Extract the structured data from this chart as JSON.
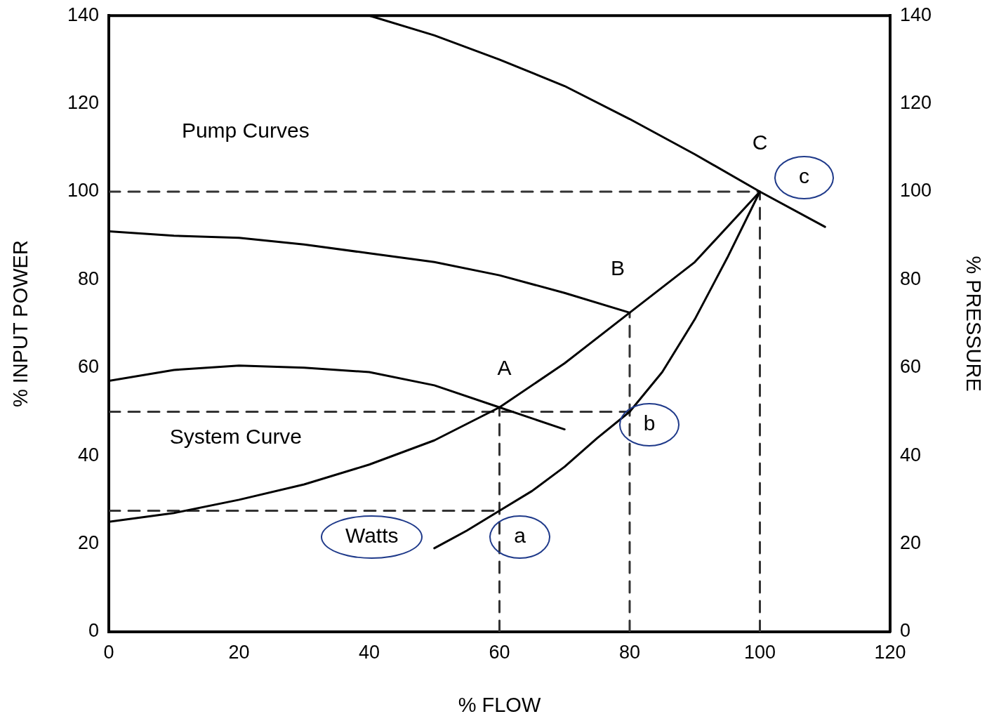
{
  "chart_data": {
    "type": "line",
    "xlabel": "% FLOW",
    "ylabel": "% INPUT POWER",
    "y2label": "% PRESSURE",
    "xlim": [
      0,
      120
    ],
    "xticks": [
      0,
      20,
      40,
      60,
      80,
      100,
      120
    ],
    "ylim": [
      0,
      140
    ],
    "yticks": [
      0,
      20,
      40,
      60,
      80,
      100,
      120,
      140
    ],
    "y2lim": [
      0,
      140
    ],
    "y2ticks": [
      0,
      20,
      40,
      60,
      80,
      100,
      120,
      140
    ],
    "grid": false,
    "legend": false,
    "marker": "none",
    "line_style": "solid",
    "series": [
      {
        "color": "#000000",
        "x": [
          40,
          50,
          60,
          70,
          80,
          90,
          100,
          110
        ],
        "values": [
          140,
          135.5,
          130,
          124,
          116.5,
          108.5,
          100,
          92
        ]
      },
      {
        "color": "#000000",
        "x": [
          0,
          10,
          20,
          30,
          40,
          50,
          60,
          70,
          80
        ],
        "values": [
          91,
          90,
          89.5,
          88,
          86,
          84,
          81,
          77,
          72.5
        ]
      },
      {
        "color": "#000000",
        "x": [
          0,
          10,
          20,
          30,
          40,
          50,
          60,
          70
        ],
        "values": [
          57,
          59.5,
          60.5,
          60,
          59,
          56,
          51,
          46
        ]
      },
      {
        "color": "#000000",
        "x": [
          0,
          10,
          20,
          30,
          40,
          50,
          60,
          70,
          80,
          90,
          100
        ],
        "values": [
          25,
          27,
          30,
          33.5,
          38,
          43.5,
          51,
          61,
          72.5,
          84,
          100
        ]
      },
      {
        "color": "#000000",
        "x": [
          50,
          55,
          60,
          65,
          70,
          75,
          80,
          85,
          90,
          95,
          100
        ],
        "values": [
          19,
          23,
          27.5,
          32,
          37.5,
          44,
          50,
          59,
          71,
          85,
          100
        ]
      },
      {
        "color": "#333333",
        "line_style": "dashed",
        "x": [
          0,
          100
        ],
        "values": [
          100,
          100
        ]
      },
      {
        "color": "#333333",
        "line_style": "dashed",
        "x": [
          0,
          80
        ],
        "values": [
          50,
          50
        ]
      },
      {
        "color": "#333333",
        "line_style": "dashed",
        "x": [
          0,
          60
        ],
        "values": [
          27.5,
          27.5
        ]
      },
      {
        "color": "#333333",
        "line_style": "dashed",
        "x": [
          60,
          60
        ],
        "values": [
          0,
          51
        ]
      },
      {
        "color": "#333333",
        "line_style": "dashed",
        "x": [
          80,
          80
        ],
        "values": [
          0,
          72.5
        ]
      },
      {
        "color": "#333333",
        "line_style": "dashed",
        "x": [
          100,
          100
        ],
        "values": [
          0,
          100
        ]
      }
    ],
    "annotations": [
      "Pump Curves",
      "System Curve",
      "Watts",
      {
        "text": "A",
        "x": 60,
        "y": 51
      },
      {
        "text": "B",
        "x": 80,
        "y": 72.5
      },
      {
        "text": "C",
        "x": 100,
        "y": 100
      },
      {
        "text": "a",
        "x": 60,
        "y": 27.5
      },
      {
        "text": "b",
        "x": 80,
        "y": 50
      },
      {
        "text": "c",
        "x": 100,
        "y": 100
      }
    ]
  }
}
